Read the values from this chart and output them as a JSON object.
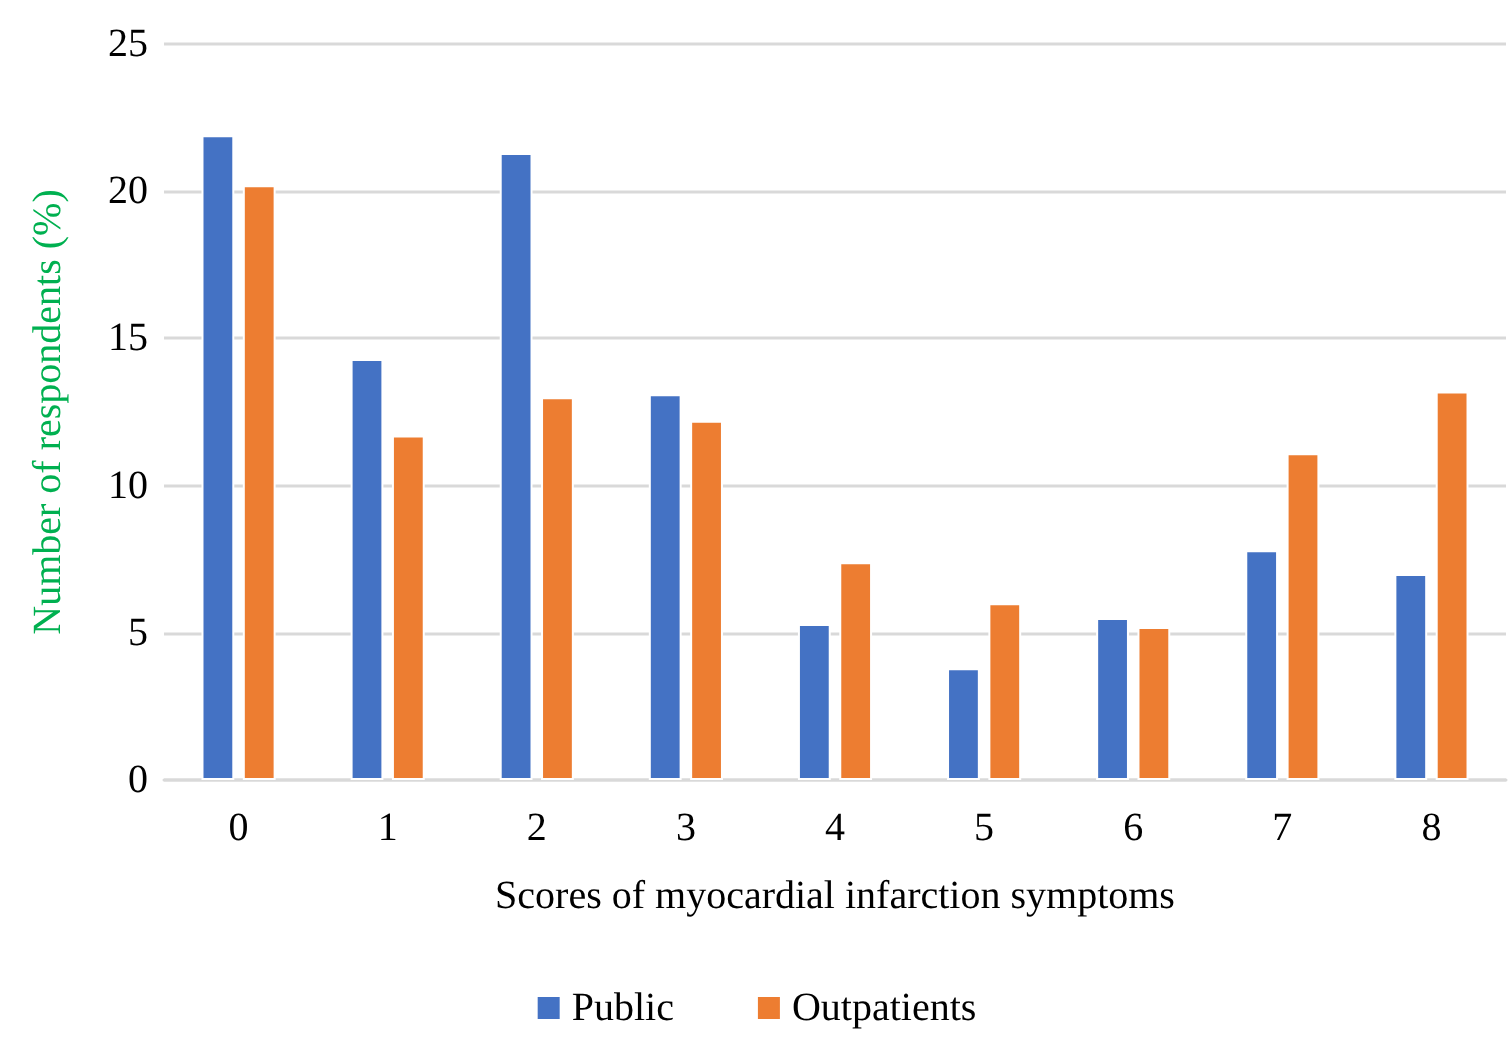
{
  "chart_data": {
    "type": "bar",
    "xlabel": "Scores of myocardial infarction symptoms",
    "ylabel": "Number of respondents (%)",
    "categories": [
      "0",
      "1",
      "2",
      "3",
      "4",
      "5",
      "6",
      "7",
      "8"
    ],
    "series": [
      {
        "name": "Public",
        "color": "#4472c4",
        "values": [
          21.9,
          14.3,
          21.3,
          13.1,
          5.3,
          3.8,
          5.5,
          7.8,
          7.0
        ]
      },
      {
        "name": "Outpatients",
        "color": "#ed7d31",
        "values": [
          20.2,
          11.7,
          13.0,
          12.2,
          7.4,
          6.0,
          5.2,
          11.1,
          13.2
        ]
      }
    ],
    "ylim": [
      0,
      25
    ],
    "yticks": [
      0,
      5,
      10,
      15,
      20,
      25
    ],
    "grid": "y",
    "legend": "bottom"
  }
}
